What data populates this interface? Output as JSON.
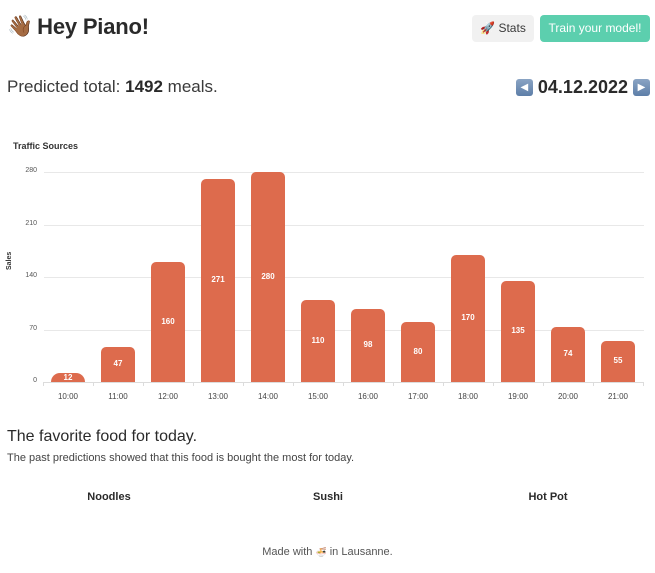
{
  "header": {
    "wave_icon": "👋🏾",
    "title": "Hey Piano!",
    "stats_icon": "🚀",
    "stats_label": "Stats",
    "train_label": "Train your model!"
  },
  "summary": {
    "prefix": "Predicted total: ",
    "total": "1492",
    "suffix": " meals."
  },
  "date_nav": {
    "prev_icon": "◀",
    "date": "04.12.2022",
    "next_icon": "▶"
  },
  "chart_data": {
    "type": "bar",
    "title": "Traffic Sources",
    "xlabel": "",
    "ylabel": "Sales",
    "categories": [
      "10:00",
      "11:00",
      "12:00",
      "13:00",
      "14:00",
      "15:00",
      "16:00",
      "17:00",
      "18:00",
      "19:00",
      "20:00",
      "21:00"
    ],
    "values": [
      12,
      47,
      160,
      271,
      280,
      110,
      98,
      80,
      170,
      135,
      74,
      55
    ],
    "yticks": [
      0,
      70,
      140,
      210,
      280
    ],
    "ylim": [
      0,
      280
    ],
    "grid": true,
    "bar_color": "#dd6b4d",
    "data_labels": true
  },
  "favorite": {
    "title": "The favorite food for today.",
    "subtitle": "The past predictions showed that this food is bought the most for today.",
    "foods": [
      "Noodles",
      "Sushi",
      "Hot Pot"
    ]
  },
  "footer": {
    "prefix": "Made with ",
    "icon": "🍜",
    "suffix": " in Lausanne."
  },
  "colors": {
    "accent": "#5ccfae",
    "bar": "#dd6b4d"
  }
}
